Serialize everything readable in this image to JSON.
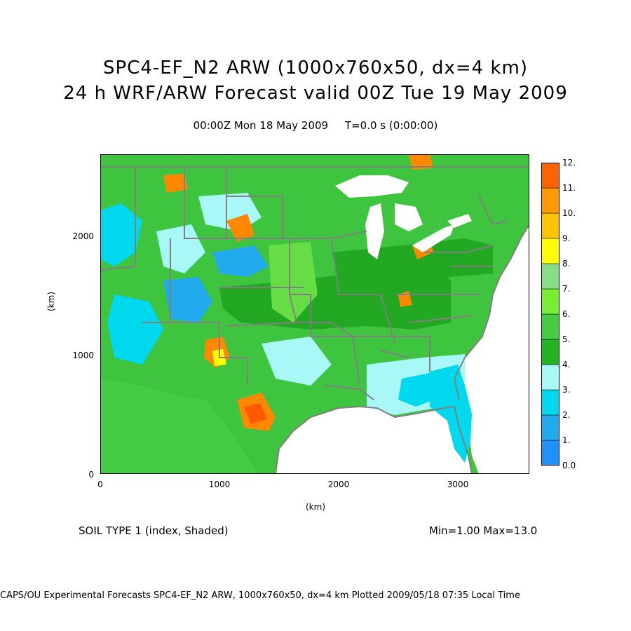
{
  "title_line1": "SPC4-EF_N2 ARW (1000x760x50, dx=4 km)",
  "title_line2": "24 h WRF/ARW Forecast valid 00Z Tue 19 May 2009",
  "subtitle": "00:00Z Mon 18 May 2009     T=0.0 s (0:00:00)",
  "x_axis": {
    "label": "(km)",
    "ticks": [
      "0",
      "1000",
      "2000",
      "3000"
    ],
    "range": [
      0,
      3600
    ]
  },
  "y_axis": {
    "label": "(km)",
    "ticks": [
      "0",
      "1000",
      "2000"
    ],
    "range": [
      0,
      2680
    ]
  },
  "colorbar": {
    "labels": [
      "0.0",
      "1.",
      "2.",
      "3.",
      "4.",
      "5.",
      "6.",
      "7.",
      "8.",
      "9.",
      "10.",
      "11.",
      "12."
    ],
    "colors": [
      "#1e90ff",
      "#22aaee",
      "#00d8ee",
      "#a8f8f8",
      "#22b422",
      "#44cc44",
      "#77ee33",
      "#88dd88",
      "#ffff00",
      "#ffc400",
      "#ff9a00",
      "#ff6400"
    ]
  },
  "field_label": "SOIL TYPE 1 (index, Shaded)",
  "min_max": "Min=1.00 Max=13.0",
  "footer": "CAPS/OU Experimental Forecasts  SPC4-EF_N2 ARW, 1000x760x50, dx=4 km  Plotted 2009/05/18 07:35 Local Time",
  "map_colors": {
    "land_green": "#3ec43e",
    "dark_green": "#22a822",
    "light_green": "#66dd44",
    "cyan": "#00d8ee",
    "light_cyan": "#a8f8f8",
    "blue": "#22aaee",
    "orange": "#ff8800",
    "red_orange": "#ff5a00",
    "water": "#ffffff",
    "boundary": "#808080"
  }
}
